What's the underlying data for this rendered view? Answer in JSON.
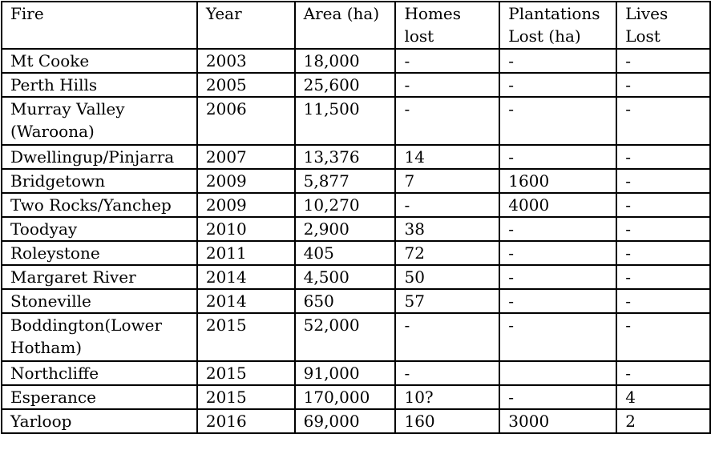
{
  "table": {
    "headers": [
      "Fire",
      "Year",
      "Area (ha)",
      "Homes\nlost",
      "Plantations\nLost (ha)",
      "Lives\nLost"
    ],
    "rows": [
      [
        "Mt Cooke",
        "2003",
        "18,000",
        "-",
        "-",
        "-"
      ],
      [
        "Perth Hills",
        "2005",
        "25,600",
        "-",
        "-",
        "-"
      ],
      [
        "Murray Valley\n(Waroona)",
        "2006",
        "11,500",
        "-",
        "-",
        "-"
      ],
      [
        "Dwellingup/Pinjarra",
        "2007",
        "13,376",
        "14",
        "-",
        "-"
      ],
      [
        "Bridgetown",
        "2009",
        "5,877",
        "7",
        "1600",
        "-"
      ],
      [
        "Two Rocks/Yanchep",
        "2009",
        "10,270",
        "-",
        "4000",
        "-"
      ],
      [
        "Toodyay",
        "2010",
        "2,900",
        "38",
        "-",
        "-"
      ],
      [
        "Roleystone",
        "2011",
        "405",
        "72",
        "-",
        "-"
      ],
      [
        "Margaret River",
        "2014",
        "4,500",
        "50",
        "-",
        "-"
      ],
      [
        "Stoneville",
        "2014",
        "650",
        "57",
        "-",
        "-"
      ],
      [
        "Boddington(Lower\nHotham)",
        "2015",
        "52,000",
        "-",
        "-",
        "-"
      ],
      [
        "Northcliffe",
        "2015",
        "91,000",
        "-",
        "",
        "-"
      ],
      [
        "Esperance",
        "2015",
        "170,000",
        "10?",
        "-",
        "4"
      ],
      [
        "Yarloop",
        "2016",
        "69,000",
        "160",
        "3000",
        "2"
      ]
    ]
  }
}
